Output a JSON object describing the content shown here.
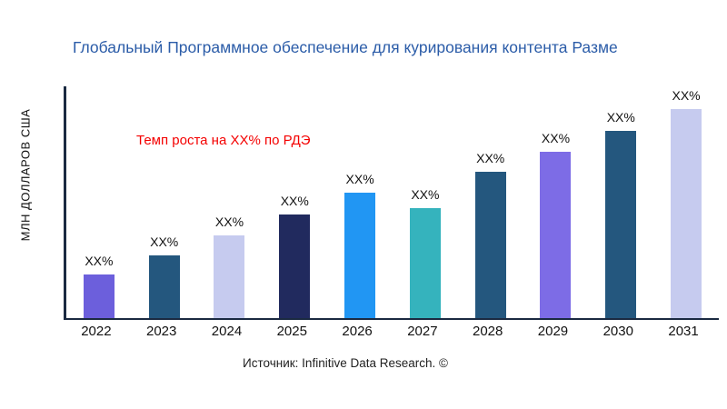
{
  "chart_data": {
    "type": "bar",
    "title": "Глобальный Программное обеспечение для курирования контента Разме",
    "ylabel": "МЛН ДОЛЛАРОВ США",
    "xlabel": "",
    "annotation": "Темп роста на XX% по РДЭ",
    "source": "Источник: Infinitive Data Research. ©",
    "categories": [
      "2022",
      "2023",
      "2024",
      "2025",
      "2026",
      "2027",
      "2028",
      "2029",
      "2030",
      "2031"
    ],
    "values": [
      48,
      69,
      91,
      114,
      138,
      121,
      161,
      183,
      206,
      230
    ],
    "values_note": "relative heights; no numeric axis ticks shown, all bars labeled XX%",
    "value_labels": [
      "XX%",
      "XX%",
      "XX%",
      "XX%",
      "XX%",
      "XX%",
      "XX%",
      "XX%",
      "XX%",
      "XX%"
    ],
    "bar_colors": [
      "#6C5FDC",
      "#24577E",
      "#C6CBEF",
      "#212A5E",
      "#2196F3",
      "#35B3BD",
      "#24577E",
      "#7D6CE6",
      "#24577E",
      "#C6CBEF"
    ],
    "ylim": [
      0,
      255
    ],
    "grid": false,
    "legend": false,
    "colors": {
      "title": "#2B5CA8",
      "annotation": "#F40000",
      "axis": "#1B2A41",
      "text": "#111111"
    }
  }
}
